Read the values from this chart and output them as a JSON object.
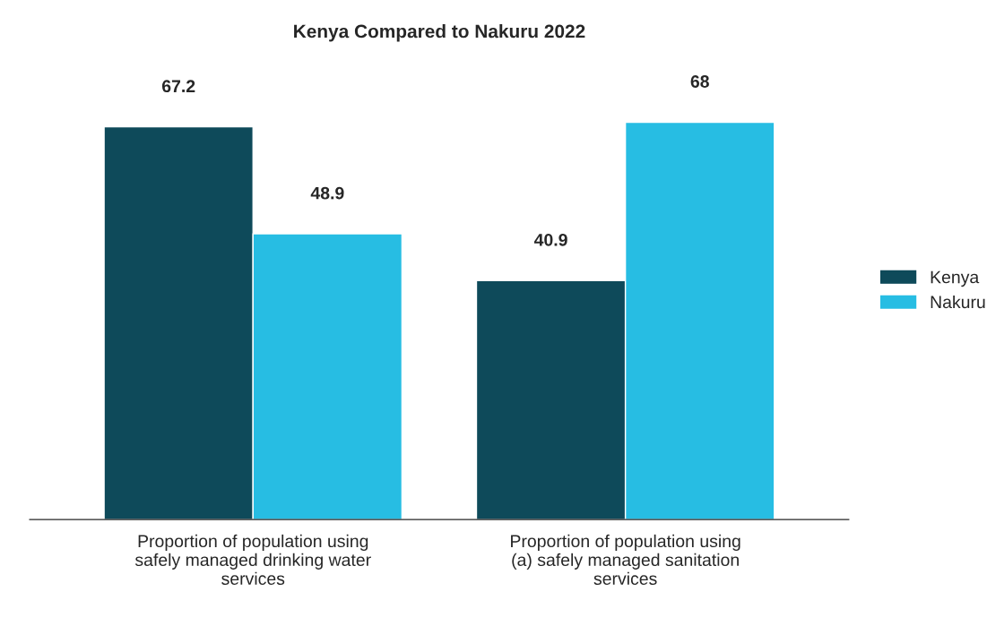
{
  "chart_data": {
    "type": "bar",
    "title": "Kenya Compared to Nakuru 2022",
    "categories": [
      "Proportion of population using safely managed drinking water services",
      "Proportion of population using (a) safely managed sanitation services"
    ],
    "series": [
      {
        "name": "Kenya",
        "color": "#0e4a5a",
        "values": [
          67.2,
          40.9
        ]
      },
      {
        "name": "Nakuru",
        "color": "#27bde3",
        "values": [
          48.9,
          68
        ]
      }
    ],
    "data_labels": true,
    "legend": "right",
    "grid": false
  }
}
